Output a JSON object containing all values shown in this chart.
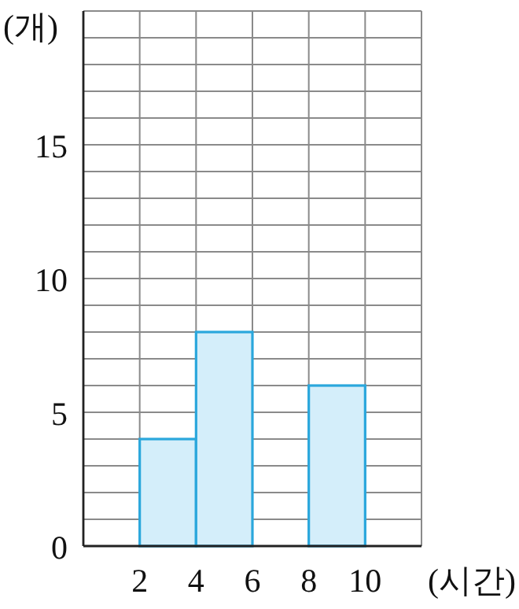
{
  "chart_data": {
    "type": "histogram",
    "ylabel": "(개)",
    "xlabel": "(시간)",
    "bins": [
      0,
      2,
      4,
      6,
      8,
      10,
      12
    ],
    "values": [
      0,
      4,
      8,
      0,
      6,
      0
    ],
    "color": "#d4eefa",
    "xlim": [
      0,
      12
    ],
    "ylim": [
      0,
      20
    ],
    "xticks": [
      {
        "value": 0,
        "label": null
      },
      2,
      4,
      6,
      8,
      10,
      {
        "value": 12,
        "label": null
      }
    ],
    "yticks": [
      0,
      {
        "value": 1,
        "label": null
      },
      {
        "value": 2,
        "label": null
      },
      {
        "value": 3,
        "label": null
      },
      {
        "value": 4,
        "label": null
      },
      5,
      {
        "value": 6,
        "label": null
      },
      {
        "value": 7,
        "label": null
      },
      {
        "value": 8,
        "label": null
      },
      {
        "value": 9,
        "label": null
      },
      10,
      {
        "value": 11,
        "label": null
      },
      {
        "value": 12,
        "label": null
      },
      {
        "value": 13,
        "label": null
      },
      {
        "value": 14,
        "label": null
      },
      15,
      {
        "value": 16,
        "label": null
      },
      {
        "value": 17,
        "label": null
      },
      {
        "value": 18,
        "label": null
      },
      {
        "value": 19,
        "label": null
      },
      {
        "value": 20,
        "label": null
      }
    ],
    "grid": true
  }
}
